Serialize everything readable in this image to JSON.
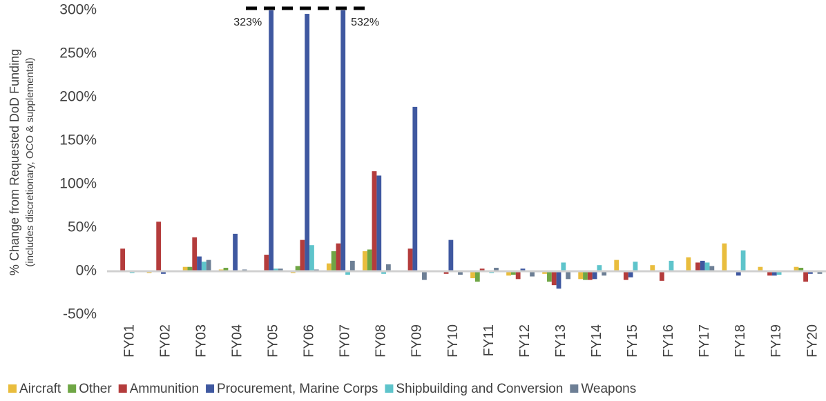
{
  "chart_data": {
    "type": "bar",
    "y_label": "% Change from Requested DoD Funding",
    "y_sublabel": "(includes discretionary, OCO & supplemental)",
    "categories": [
      "FY01",
      "FY02",
      "FY03",
      "FY04",
      "FY05",
      "FY06",
      "FY07",
      "FY08",
      "FY09",
      "FY10",
      "FY11",
      "FY12",
      "FY13",
      "FY14",
      "FY15",
      "FY16",
      "FY17",
      "FY18",
      "FY19",
      "FY20"
    ],
    "series": [
      {
        "name": "Aircraft",
        "color": "#e9bd3d",
        "values": [
          1,
          -2,
          5,
          2,
          0,
          -2,
          9,
          23,
          0,
          0,
          -8,
          -5,
          -3,
          -9,
          13,
          7,
          16,
          32,
          5,
          5
        ]
      },
      {
        "name": "Other",
        "color": "#6fa645",
        "values": [
          0,
          0,
          5,
          4,
          0,
          6,
          23,
          25,
          0,
          0,
          -12,
          -4,
          -12,
          -10,
          0,
          0,
          0,
          0,
          0,
          4
        ]
      },
      {
        "name": "Ammunition",
        "color": "#b43c3c",
        "values": [
          26,
          57,
          39,
          0,
          19,
          36,
          32,
          115,
          26,
          -3,
          3,
          -9,
          -16,
          -10,
          -10,
          -11,
          10,
          0,
          -5,
          -12
        ]
      },
      {
        "name": "Procurement, Marine Corps",
        "color": "#3f58a0",
        "values": [
          0,
          -3,
          17,
          43,
          323,
          296,
          532,
          110,
          189,
          36,
          0,
          3,
          -20,
          -9,
          -7,
          0,
          12,
          -5,
          -5,
          -3
        ],
        "value_labels": [
          null,
          null,
          null,
          null,
          "323%",
          null,
          "532%",
          null,
          null,
          null,
          null,
          null,
          null,
          null,
          null,
          null,
          null,
          null,
          null,
          null
        ]
      },
      {
        "name": "Shipbuilding and Conversion",
        "color": "#5ec4cb",
        "values": [
          -2,
          0,
          11,
          0,
          3,
          30,
          -4,
          -3,
          0,
          0,
          -2,
          0,
          10,
          7,
          11,
          12,
          10,
          24,
          -4,
          0
        ]
      },
      {
        "name": "Weapons",
        "color": "#6d7f95",
        "values": [
          0,
          0,
          13,
          2,
          3,
          2,
          12,
          8,
          -10,
          -4,
          4,
          -6,
          -9,
          -5,
          0,
          0,
          6,
          0,
          0,
          -3
        ]
      }
    ],
    "ylim": [
      -55,
      300
    ],
    "yticks": [
      {
        "value": -50,
        "label": "-50%"
      },
      {
        "value": 0,
        "label": "0%"
      },
      {
        "value": 50,
        "label": "50%"
      },
      {
        "value": 100,
        "label": "100%"
      },
      {
        "value": 150,
        "label": "150%"
      },
      {
        "value": 200,
        "label": "200%"
      },
      {
        "value": 250,
        "label": "250%"
      },
      {
        "value": 300,
        "label": "300%"
      }
    ],
    "grid": false,
    "legend": "bottom"
  }
}
